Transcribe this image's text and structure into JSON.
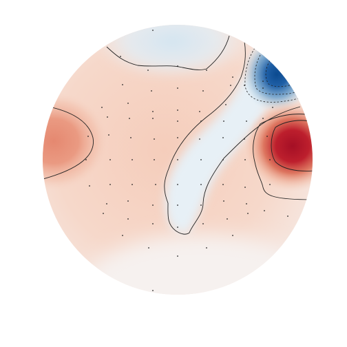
{
  "chart_data": {
    "type": "heatmap",
    "title": "",
    "xlabel": "",
    "ylabel": "",
    "colormap": "RdBu_r",
    "colors": {
      "positive_max": "#a50f25",
      "positive_mid": "#e8846b",
      "neutral": "#f7f7f7",
      "negative_mid": "#8fbcd9",
      "negative_max": "#0b4a8f",
      "contour_line": "#222222",
      "sensor_marker": "#222222"
    },
    "sensor_count": 64,
    "extrema": [
      {
        "region": "right-temporal",
        "sign": "positive",
        "relative_amplitude": 1.0
      },
      {
        "region": "right-frontal",
        "sign": "negative",
        "relative_amplitude": -1.0
      },
      {
        "region": "left-temporal",
        "sign": "positive",
        "relative_amplitude": 0.45
      },
      {
        "region": "central-diagonal-strip",
        "sign": "negative",
        "relative_amplitude": -0.12
      }
    ],
    "contour_levels": [
      -0.75,
      -0.5,
      -0.25,
      0,
      0.25,
      0.5
    ],
    "grid": false,
    "legend": "none"
  }
}
